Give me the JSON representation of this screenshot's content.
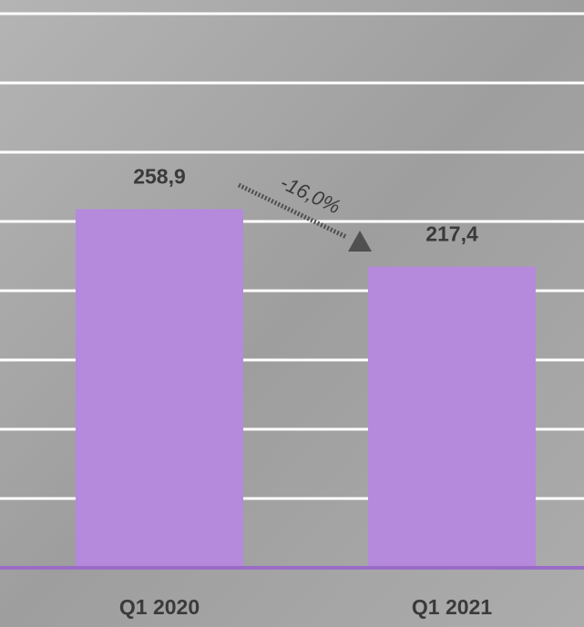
{
  "chart_data": {
    "type": "bar",
    "categories": [
      "Q1 2020",
      "Q1 2021"
    ],
    "values": [
      258.9,
      217.4
    ],
    "value_labels": [
      "258,9",
      "217,4"
    ],
    "color": "#b589dc",
    "ylim": [
      0,
      400
    ],
    "yticks": [
      0,
      50,
      100,
      150,
      200,
      250,
      300,
      350,
      400
    ],
    "grid": true,
    "annotation": "-16,0%"
  }
}
